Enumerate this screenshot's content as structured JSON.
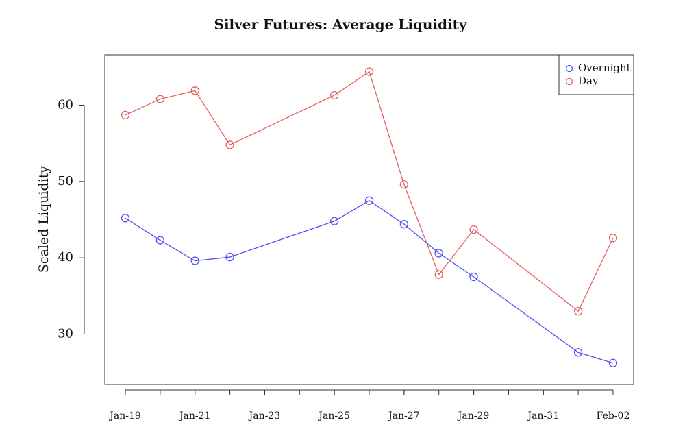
{
  "chart_data": {
    "type": "line",
    "title": "Silver Futures: Average Liquidity",
    "y_label": "Scaled Liquidity",
    "x": [
      "Jan-19",
      "Jan-20",
      "Jan-21",
      "Jan-22",
      "Jan-25",
      "Jan-26",
      "Jan-27",
      "Jan-28",
      "Jan-29",
      "Feb-01",
      "Feb-02"
    ],
    "xlim": [
      "Jan-19",
      "Feb-02"
    ],
    "xticks": [
      "Jan-19",
      "Jan-21",
      "Jan-23",
      "Jan-25",
      "Jan-27",
      "Jan-29",
      "Jan-31",
      "Feb-02"
    ],
    "ylim": [
      23.4,
      66.6
    ],
    "yticks": [
      30,
      40,
      50,
      60
    ],
    "legend": "top-right",
    "series": [
      {
        "name": "Overnight",
        "color": "#4f4ff5",
        "values": [
          45.2,
          42.3,
          39.6,
          40.1,
          44.8,
          47.5,
          44.4,
          40.6,
          37.5,
          27.6,
          26.2
        ]
      },
      {
        "name": "Day",
        "color": "#e2605d",
        "values": [
          58.7,
          60.8,
          61.9,
          54.8,
          61.3,
          64.4,
          49.6,
          37.8,
          43.7,
          33.0,
          42.6
        ]
      }
    ]
  }
}
